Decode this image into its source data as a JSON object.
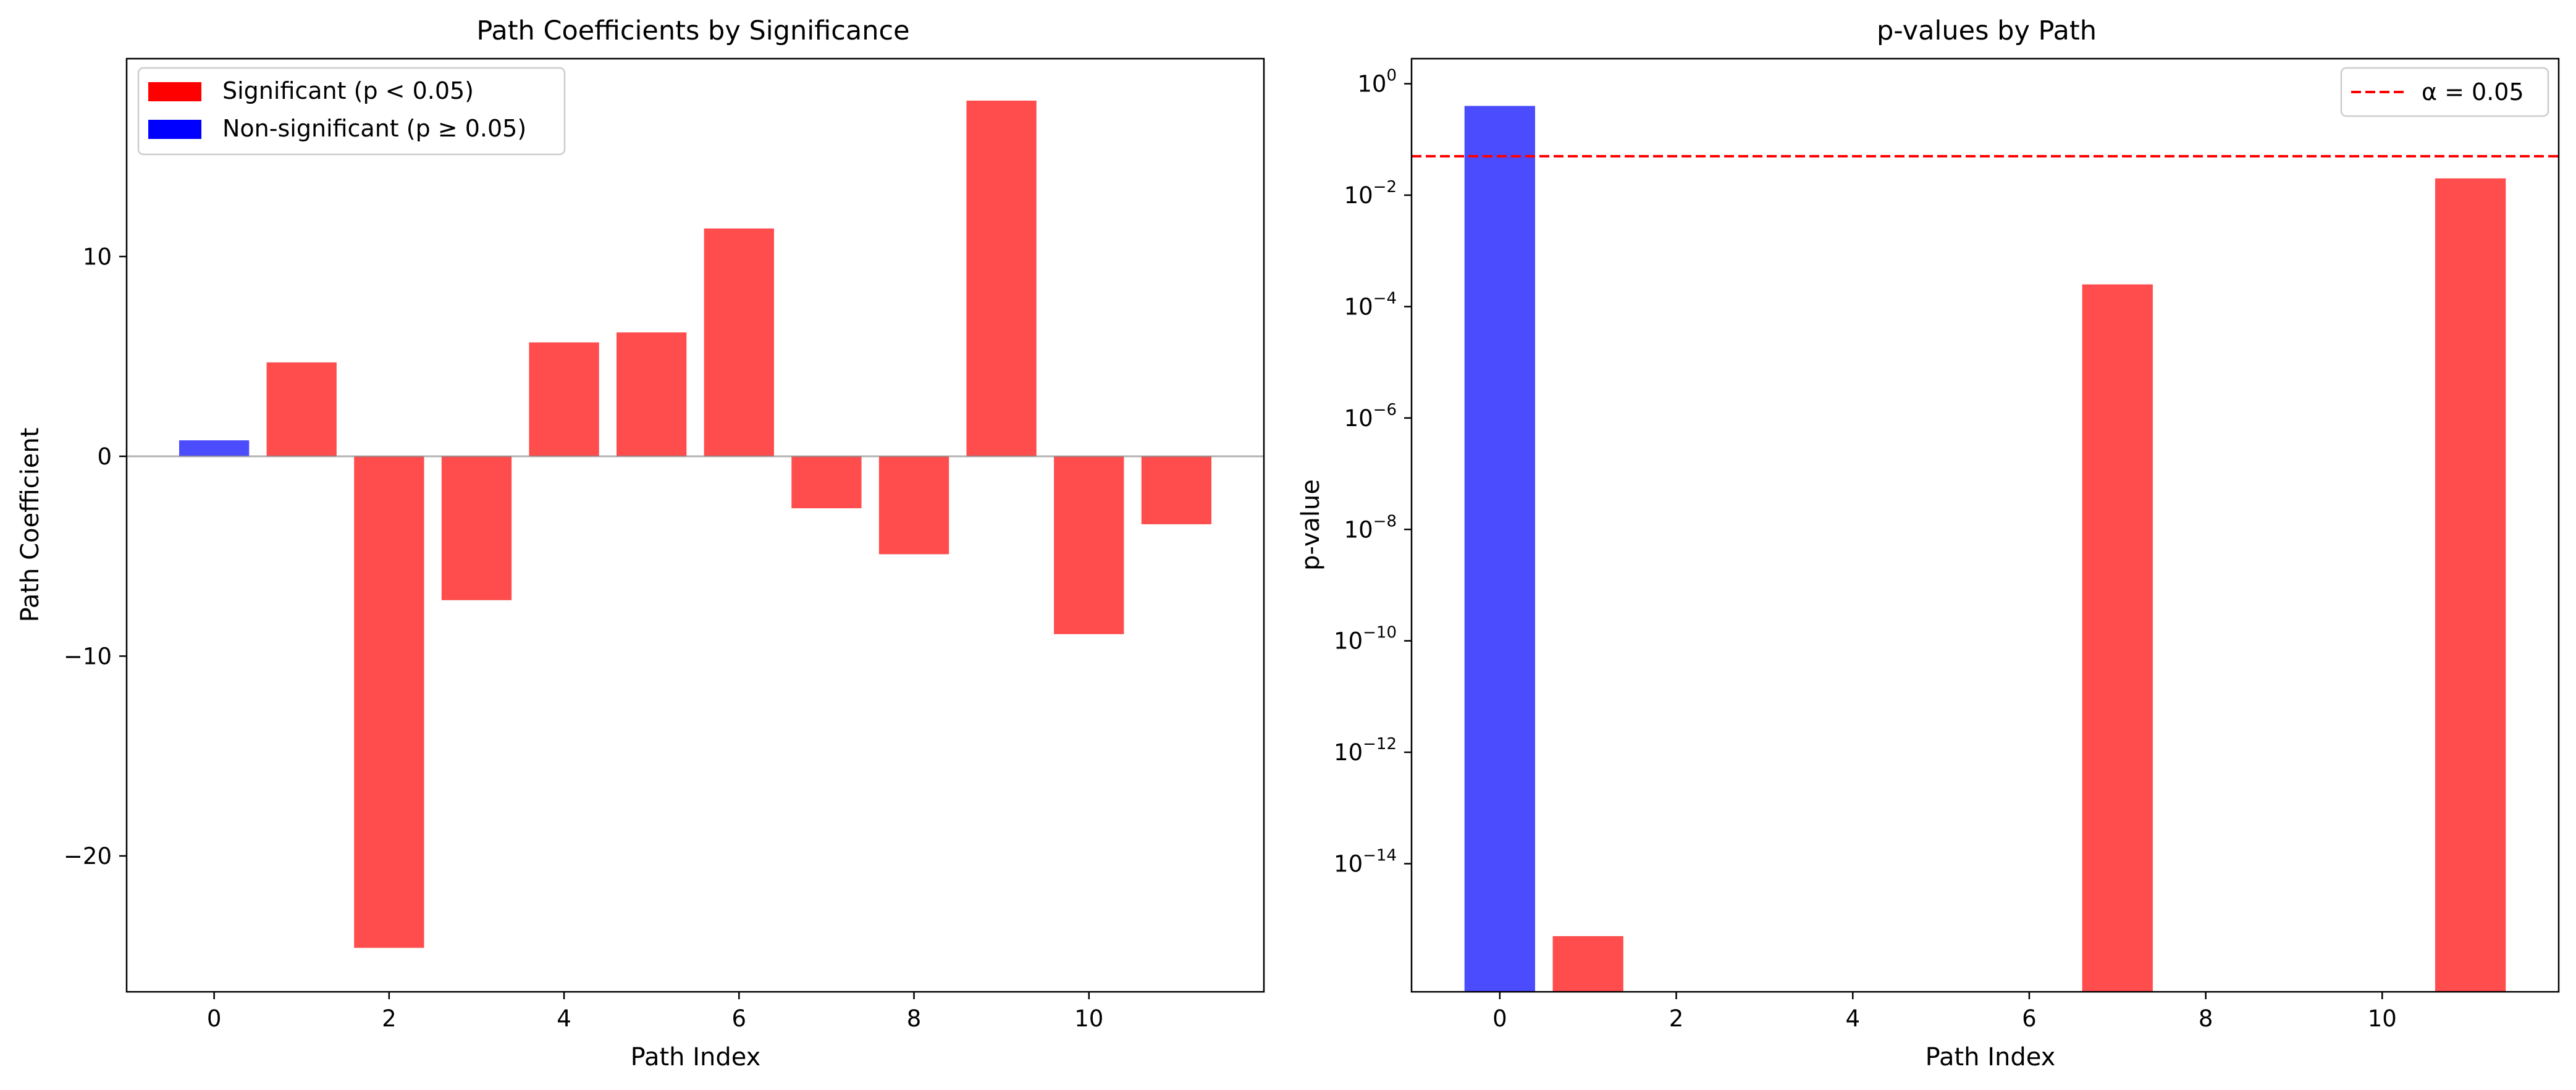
{
  "charts": [
    {
      "type": "bar",
      "title": "Path Coefficients by Significance",
      "xlabel": "Path Index",
      "ylabel": "Path Coefficient",
      "x_ticks": [
        0,
        2,
        4,
        6,
        8,
        10
      ],
      "y_ticks": [
        -20,
        -10,
        0,
        10
      ],
      "xlim": [
        -1,
        12
      ],
      "ylim": [
        -26.8,
        19.9
      ],
      "legend": {
        "placement": "top-left",
        "entries": [
          {
            "label": "Significant (p < 0.05)",
            "color": "#ff0000"
          },
          {
            "label": "Non-significant (p ≥ 0.05)",
            "color": "#0000ff"
          }
        ]
      },
      "bars": [
        {
          "x": 0,
          "value": 0.8,
          "significant": false
        },
        {
          "x": 1,
          "value": 4.7,
          "significant": true
        },
        {
          "x": 2,
          "value": -24.6,
          "significant": true
        },
        {
          "x": 3,
          "value": -7.2,
          "significant": true
        },
        {
          "x": 4,
          "value": 5.7,
          "significant": true
        },
        {
          "x": 5,
          "value": 6.2,
          "significant": true
        },
        {
          "x": 6,
          "value": 11.4,
          "significant": true
        },
        {
          "x": 7,
          "value": -2.6,
          "significant": true
        },
        {
          "x": 8,
          "value": -4.9,
          "significant": true
        },
        {
          "x": 9,
          "value": 17.8,
          "significant": true
        },
        {
          "x": 10,
          "value": -8.9,
          "significant": true
        },
        {
          "x": 11,
          "value": -3.4,
          "significant": true
        }
      ]
    },
    {
      "type": "bar",
      "title": "p-values by Path",
      "xlabel": "Path Index",
      "ylabel": "p-value",
      "y_scale": "log",
      "x_ticks": [
        0,
        2,
        4,
        6,
        8,
        10
      ],
      "y_tick_exponents": [
        0,
        -2,
        -4,
        -6,
        -8,
        -10,
        -12,
        -14
      ],
      "xlim": [
        -1,
        12
      ],
      "log10_ylim": [
        -16.3,
        0.45
      ],
      "alpha_line": {
        "value": 0.05,
        "label": "α = 0.05",
        "color": "#ff0000",
        "style": "dashed"
      },
      "legend": {
        "placement": "top-right"
      },
      "bars": [
        {
          "x": 0,
          "p_value": 0.4,
          "significant": false
        },
        {
          "x": 1,
          "p_value": 5e-16,
          "significant": true
        },
        {
          "x": 2,
          "p_value": 0,
          "significant": true
        },
        {
          "x": 3,
          "p_value": 0,
          "significant": true
        },
        {
          "x": 4,
          "p_value": 0,
          "significant": true
        },
        {
          "x": 5,
          "p_value": 0,
          "significant": true
        },
        {
          "x": 6,
          "p_value": 0,
          "significant": true
        },
        {
          "x": 7,
          "p_value": 0.00025,
          "significant": true
        },
        {
          "x": 8,
          "p_value": 0,
          "significant": true
        },
        {
          "x": 9,
          "p_value": 0,
          "significant": true
        },
        {
          "x": 10,
          "p_value": 0,
          "significant": true
        },
        {
          "x": 11,
          "p_value": 0.02,
          "significant": true
        }
      ]
    }
  ],
  "colors": {
    "significant": "#ff0000",
    "non_significant": "#0000ff",
    "bar_alpha": 0.7,
    "zero_line": "#808080"
  }
}
